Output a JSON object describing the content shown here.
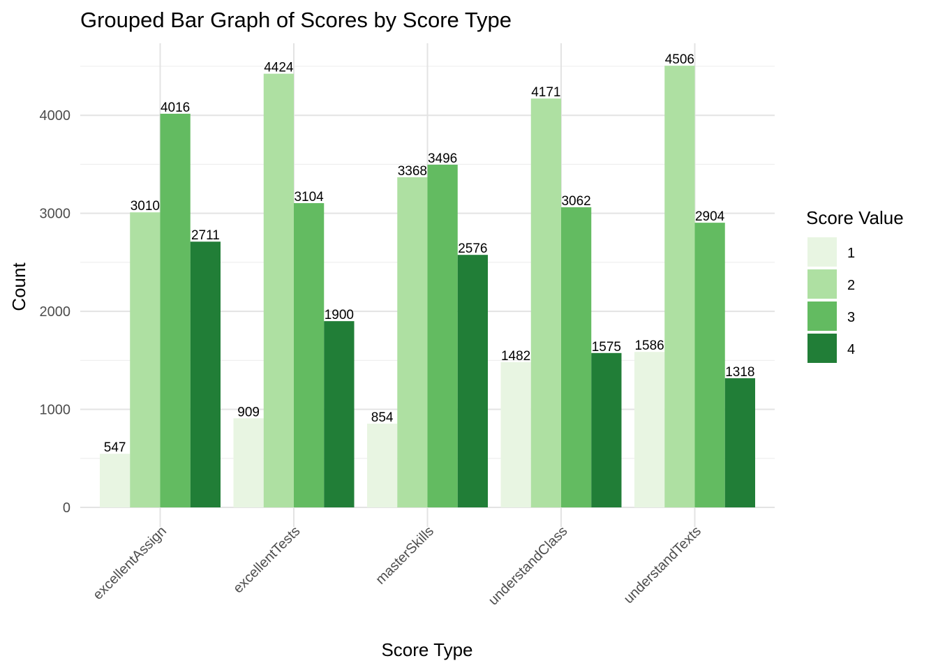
{
  "chart_data": {
    "type": "bar",
    "title": "Grouped Bar Graph of Scores by Score Type",
    "xlabel": "Score Type",
    "ylabel": "Count",
    "categories": [
      "excellentAssign",
      "excellentTests",
      "masterSkills",
      "understandClass",
      "understandTexts"
    ],
    "series": [
      {
        "name": "1",
        "color": "#e8f5e2",
        "values": [
          547,
          909,
          854,
          1482,
          1586
        ]
      },
      {
        "name": "2",
        "color": "#aee0a2",
        "values": [
          3010,
          4424,
          3368,
          4171,
          4506
        ]
      },
      {
        "name": "3",
        "color": "#63bb61",
        "values": [
          4016,
          3104,
          3496,
          3062,
          2904
        ]
      },
      {
        "name": "4",
        "color": "#217e37",
        "values": [
          2711,
          1900,
          2576,
          1575,
          1318
        ]
      }
    ],
    "ylim": [
      0,
      4506
    ],
    "yticks": [
      0,
      1000,
      2000,
      3000,
      4000
    ],
    "grid": true,
    "legend": {
      "title": "Score Value",
      "position": "right"
    }
  }
}
